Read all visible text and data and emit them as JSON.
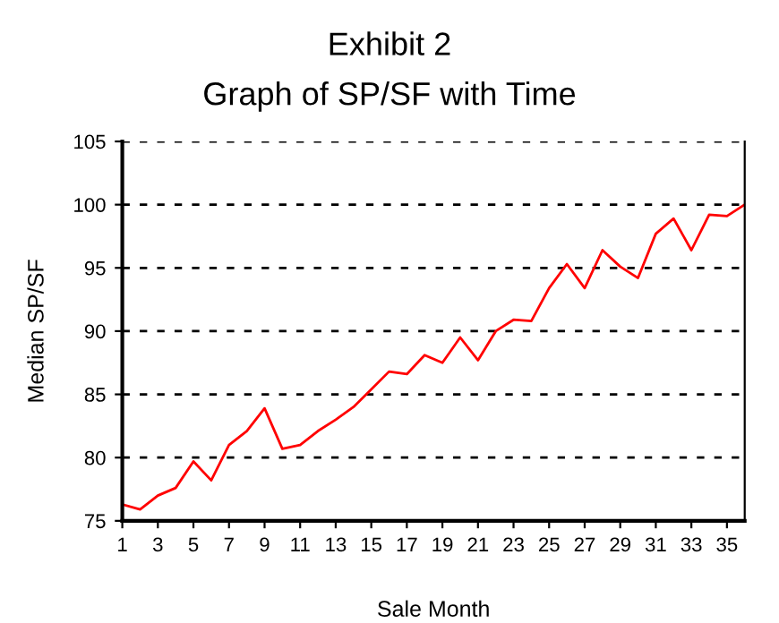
{
  "chart_data": {
    "type": "line",
    "title": "Exhibit 2",
    "subtitle": "Graph of SP/SF with Time",
    "xlabel": "Sale Month",
    "ylabel": "Median SP/SF",
    "x": [
      1,
      2,
      3,
      4,
      5,
      6,
      7,
      8,
      9,
      10,
      11,
      12,
      13,
      14,
      15,
      16,
      17,
      18,
      19,
      20,
      21,
      22,
      23,
      24,
      25,
      26,
      27,
      28,
      29,
      30,
      31,
      32,
      33,
      34,
      35,
      36
    ],
    "series": [
      {
        "color": "#ff0000",
        "values": [
          76.3,
          75.9,
          77.0,
          77.6,
          79.7,
          78.2,
          81.0,
          82.1,
          83.9,
          80.7,
          81.0,
          82.1,
          83.0,
          84.0,
          85.4,
          86.8,
          86.6,
          88.1,
          87.5,
          89.5,
          87.7,
          90.0,
          90.9,
          90.8,
          93.4,
          95.3,
          93.4,
          96.4,
          95.1,
          94.2,
          97.7,
          98.9,
          96.4,
          99.2,
          99.1,
          100.0
        ]
      }
    ],
    "xlim": [
      1,
      36
    ],
    "xticks": [
      1,
      3,
      5,
      7,
      9,
      11,
      13,
      15,
      17,
      19,
      21,
      23,
      25,
      27,
      29,
      31,
      33,
      35
    ],
    "ylim": [
      75,
      105
    ],
    "yticks": [
      75,
      80,
      85,
      90,
      95,
      100,
      105
    ],
    "grid": "y",
    "marker": "none",
    "line_style": "solid",
    "legend": false
  }
}
